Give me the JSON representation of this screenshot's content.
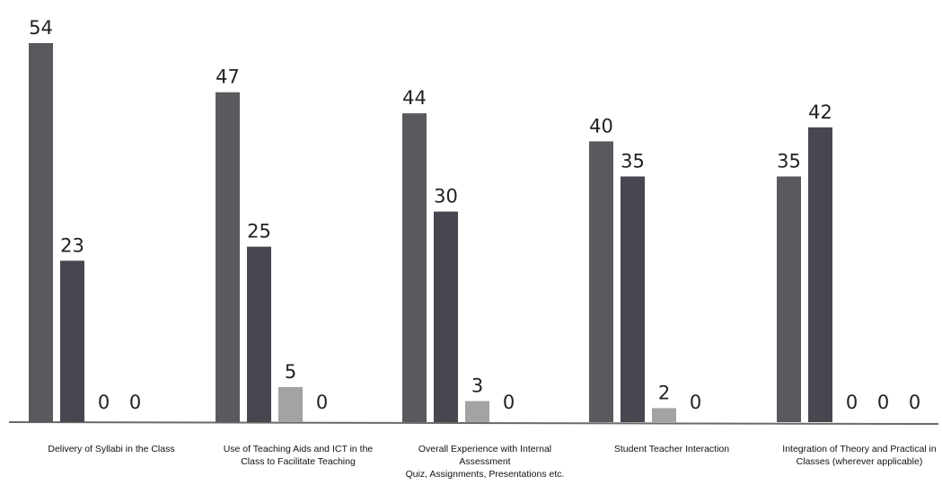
{
  "chart_data": {
    "type": "bar",
    "categories": [
      [
        "Delivery of Syllabi in the Class"
      ],
      [
        "Use of Teaching Aids and ICT in the",
        "Class to Facilitate Teaching"
      ],
      [
        "Overall Experience with Internal",
        "Assessment",
        "Quiz, Assignments, Presentations etc."
      ],
      [
        "Student Teacher Interaction"
      ],
      [
        "Integration of Theory and Practical in",
        "Classes (wherever applicable)"
      ]
    ],
    "series": [
      {
        "values": [
          54,
          47,
          44,
          40,
          35
        ],
        "color": "#5a5a5e"
      },
      {
        "values": [
          23,
          25,
          30,
          35,
          42
        ],
        "color": "#4a4650"
      },
      {
        "values": [
          0,
          5,
          3,
          2,
          0
        ],
        "color": "#a3a3a3"
      },
      {
        "values": [
          0,
          0,
          0,
          0,
          0
        ],
        "color": "#8a8a8a"
      },
      {
        "values": [
          null,
          null,
          null,
          null,
          0
        ],
        "color": "#8a8a8a"
      }
    ],
    "ylim": [
      0,
      54
    ],
    "grid": false,
    "legend": "none"
  },
  "colors": {
    "axis": "#6a6a6a"
  }
}
